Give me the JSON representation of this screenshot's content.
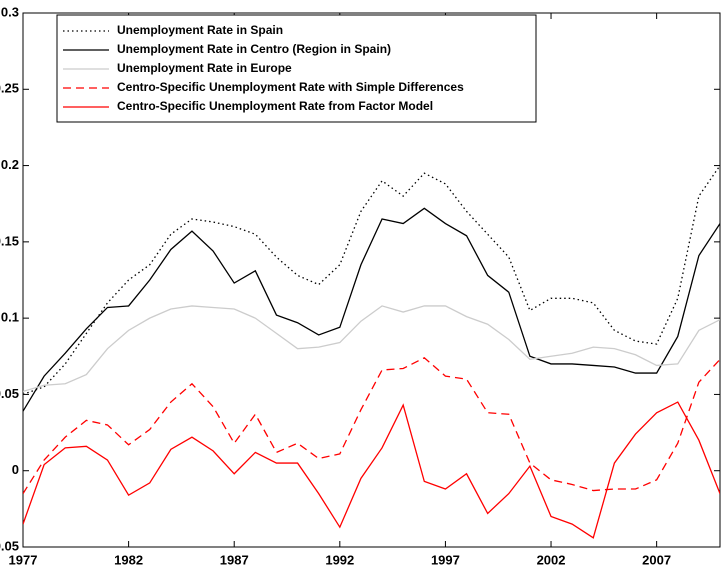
{
  "chart_data": {
    "type": "line",
    "x": [
      1977,
      1978,
      1979,
      1980,
      1981,
      1982,
      1983,
      1984,
      1985,
      1986,
      1987,
      1988,
      1989,
      1990,
      1991,
      1992,
      1993,
      1994,
      1995,
      1996,
      1997,
      1998,
      1999,
      2000,
      2001,
      2002,
      2003,
      2004,
      2005,
      2006,
      2007,
      2008,
      2009,
      2010
    ],
    "series": [
      {
        "name": "Unemployment Rate in Spain",
        "color": "#000000",
        "line_style": "dotted",
        "values": [
          0.05,
          0.055,
          0.07,
          0.09,
          0.11,
          0.125,
          0.135,
          0.155,
          0.165,
          0.163,
          0.16,
          0.155,
          0.14,
          0.128,
          0.122,
          0.135,
          0.17,
          0.19,
          0.18,
          0.195,
          0.188,
          0.17,
          0.155,
          0.14,
          0.105,
          0.113,
          0.113,
          0.11,
          0.092,
          0.085,
          0.083,
          0.113,
          0.18,
          0.2
        ]
      },
      {
        "name": "Unemployment Rate in Centro (Region in Spain)",
        "color": "#000000",
        "line_style": "solid",
        "values": [
          0.039,
          0.062,
          0.077,
          0.093,
          0.107,
          0.108,
          0.125,
          0.145,
          0.157,
          0.144,
          0.123,
          0.131,
          0.102,
          0.097,
          0.089,
          0.094,
          0.135,
          0.165,
          0.162,
          0.172,
          0.162,
          0.154,
          0.128,
          0.117,
          0.075,
          0.07,
          0.07,
          0.069,
          0.068,
          0.064,
          0.064,
          0.088,
          0.141,
          0.162
        ]
      },
      {
        "name": "Unemployment Rate in Europe",
        "color": "#cccccc",
        "line_style": "solid",
        "values": [
          0.052,
          0.056,
          0.057,
          0.063,
          0.08,
          0.092,
          0.1,
          0.106,
          0.108,
          0.107,
          0.106,
          0.1,
          0.09,
          0.08,
          0.081,
          0.084,
          0.098,
          0.108,
          0.104,
          0.108,
          0.108,
          0.101,
          0.096,
          0.086,
          0.073,
          0.075,
          0.077,
          0.081,
          0.08,
          0.076,
          0.069,
          0.07,
          0.092,
          0.099
        ]
      },
      {
        "name": "Centro-Specific Unemployment Rate with Simple Differences",
        "color": "#ff0000",
        "line_style": "dashed",
        "values": [
          -0.015,
          0.007,
          0.022,
          0.033,
          0.03,
          0.017,
          0.027,
          0.045,
          0.057,
          0.042,
          0.018,
          0.037,
          0.012,
          0.018,
          0.008,
          0.011,
          0.04,
          0.066,
          0.067,
          0.074,
          0.062,
          0.06,
          0.038,
          0.037,
          0.005,
          -0.006,
          -0.009,
          -0.013,
          -0.012,
          -0.012,
          -0.006,
          0.018,
          0.058,
          0.073
        ]
      },
      {
        "name": "Centro-Specific Unemployment Rate from Factor Model",
        "color": "#ff0000",
        "line_style": "solid",
        "values": [
          -0.035,
          0.004,
          0.015,
          0.016,
          0.007,
          -0.016,
          -0.008,
          0.014,
          0.022,
          0.013,
          -0.002,
          0.012,
          0.005,
          0.005,
          -0.015,
          -0.037,
          -0.005,
          0.015,
          0.043,
          -0.007,
          -0.012,
          -0.002,
          -0.028,
          -0.015,
          0.003,
          -0.03,
          -0.035,
          -0.044,
          0.005,
          0.024,
          0.038,
          0.045,
          0.02,
          -0.015
        ]
      }
    ],
    "xlim": [
      1977,
      2010
    ],
    "xticks": [
      1977,
      1982,
      1987,
      1992,
      1997,
      2002,
      2007
    ],
    "ylim": [
      -0.05,
      0.3
    ],
    "yticks": [
      -0.05,
      0,
      0.05,
      0.1,
      0.15,
      0.2,
      0.25,
      0.3
    ],
    "legend": "upper left"
  }
}
